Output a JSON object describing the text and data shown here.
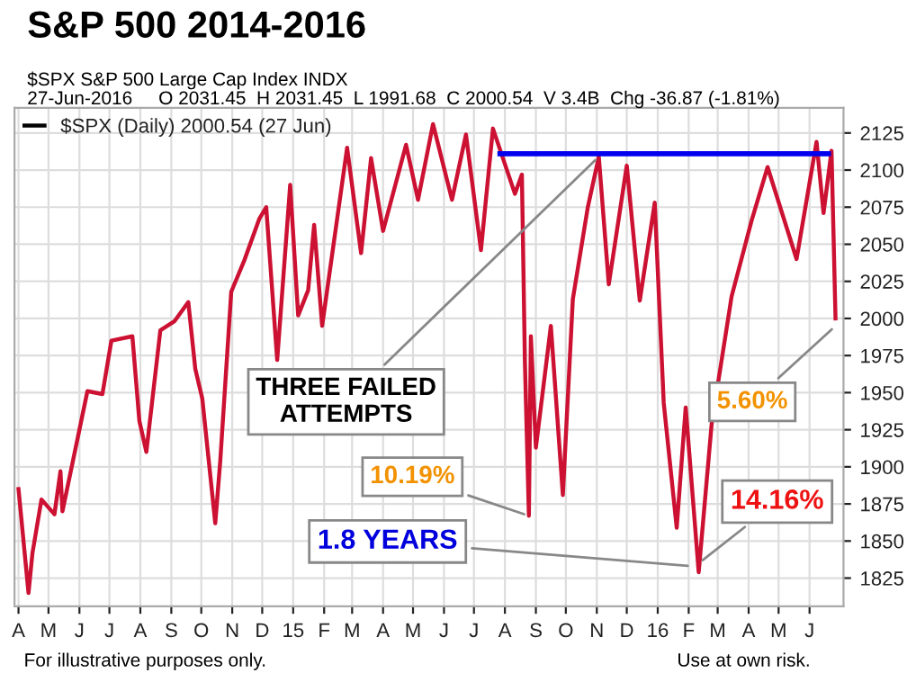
{
  "chart_data": {
    "type": "line",
    "title": "S&P 500 2014-2016",
    "subtitle": "$SPX S&P 500 Large Cap Index INDX\n27-Jun-2016     O 2031.45  H 2031.45  L 1991.68  C 2000.54  V 3.4B  Chg -36.87 (-1.81%)",
    "series": [
      {
        "name": "$SPX (Daily) 2000.54 (27 Jun)",
        "color": "#cc1133",
        "x": [
          "2014-04-01",
          "2014-04-11",
          "2014-04-15",
          "2014-04-24",
          "2014-05-07",
          "2014-05-13",
          "2014-05-15",
          "2014-06-09",
          "2014-06-24",
          "2014-07-03",
          "2014-07-24",
          "2014-07-31",
          "2014-08-07",
          "2014-08-21",
          "2014-09-04",
          "2014-09-18",
          "2014-09-25",
          "2014-10-02",
          "2014-10-15",
          "2014-10-20",
          "2014-10-31",
          "2014-11-13",
          "2014-11-28",
          "2014-12-05",
          "2014-12-16",
          "2014-12-29",
          "2015-01-06",
          "2015-01-16",
          "2015-01-22",
          "2015-01-30",
          "2015-02-24",
          "2015-03-10",
          "2015-03-20",
          "2015-04-01",
          "2015-04-24",
          "2015-05-06",
          "2015-05-21",
          "2015-06-09",
          "2015-06-23",
          "2015-07-08",
          "2015-07-20",
          "2015-08-11",
          "2015-08-18",
          "2015-08-21",
          "2015-08-25",
          "2015-08-27",
          "2015-09-01",
          "2015-09-16",
          "2015-09-28",
          "2015-10-08",
          "2015-10-23",
          "2015-11-03",
          "2015-11-13",
          "2015-12-01",
          "2015-12-14",
          "2015-12-29",
          "2016-01-07",
          "2016-01-20",
          "2016-01-29",
          "2016-02-11",
          "2016-02-24",
          "2016-03-15",
          "2016-04-04",
          "2016-04-20",
          "2016-05-19",
          "2016-06-08",
          "2016-06-15",
          "2016-06-23",
          "2016-06-27"
        ],
        "values": [
          1885,
          1815,
          1842,
          1878,
          1868,
          1897,
          1870,
          1951,
          1949,
          1985,
          1988,
          1931,
          1910,
          1992,
          1998,
          2011,
          1966,
          1946,
          1862,
          1904,
          2018,
          2039,
          2067,
          2075,
          1972,
          2090,
          2002,
          2019,
          2063,
          1995,
          2115,
          2044,
          2108,
          2059,
          2117,
          2080,
          2131,
          2080,
          2124,
          2046,
          2128,
          2084,
          2097,
          1971,
          1867,
          1988,
          1913,
          1995,
          1881,
          2013,
          2075,
          2109,
          2023,
          2103,
          2012,
          2078,
          1943,
          1859,
          1940,
          1829,
          1929,
          2015,
          2066,
          2102,
          2040,
          2119,
          2071,
          2113,
          2000
        ]
      },
      {
        "color": "#0000ee",
        "x": [
          "2015-07-27",
          "2016-06-20"
        ],
        "values": [
          2111,
          2111
        ]
      }
    ],
    "xlim": [
      "2014-03-28",
      "2016-07-05"
    ],
    "xticks": [
      {
        "value": "2014-04-01",
        "label": "A"
      },
      {
        "value": "2014-05-01",
        "label": "M"
      },
      {
        "value": "2014-06-01",
        "label": "J"
      },
      {
        "value": "2014-07-01",
        "label": "J"
      },
      {
        "value": "2014-08-01",
        "label": "A"
      },
      {
        "value": "2014-09-01",
        "label": "S"
      },
      {
        "value": "2014-10-01",
        "label": "O"
      },
      {
        "value": "2014-11-01",
        "label": "N"
      },
      {
        "value": "2014-12-01",
        "label": "D"
      },
      {
        "value": "2015-01-01",
        "label": "15"
      },
      {
        "value": "2015-02-01",
        "label": "F"
      },
      {
        "value": "2015-03-01",
        "label": "M"
      },
      {
        "value": "2015-04-01",
        "label": "A"
      },
      {
        "value": "2015-05-01",
        "label": "M"
      },
      {
        "value": "2015-06-01",
        "label": "J"
      },
      {
        "value": "2015-07-01",
        "label": "J"
      },
      {
        "value": "2015-08-01",
        "label": "A"
      },
      {
        "value": "2015-09-01",
        "label": "S"
      },
      {
        "value": "2015-10-01",
        "label": "O"
      },
      {
        "value": "2015-11-01",
        "label": "N"
      },
      {
        "value": "2015-12-01",
        "label": "D"
      },
      {
        "value": "2016-01-01",
        "label": "16"
      },
      {
        "value": "2016-02-01",
        "label": "F"
      },
      {
        "value": "2016-03-01",
        "label": "M"
      },
      {
        "value": "2016-04-01",
        "label": "A"
      },
      {
        "value": "2016-05-01",
        "label": "M"
      },
      {
        "value": "2016-06-01",
        "label": "J"
      }
    ],
    "ylim": [
      1806,
      2142
    ],
    "yticks": [
      1825,
      1850,
      1875,
      1900,
      1925,
      1950,
      1975,
      2000,
      2025,
      2050,
      2075,
      2100,
      2125
    ],
    "grid": true,
    "legend": "top left",
    "annotations": [
      {
        "text": "THREE FAILED ATTEMPTS",
        "x": "2015-11-03",
        "y": 2109
      },
      {
        "text": "10.19%",
        "x": "2015-08-25",
        "y": 1867
      },
      {
        "text": "5.60%",
        "x": "2016-06-27",
        "y": 1995
      },
      {
        "text": "14.16%",
        "x": "2016-02-11",
        "y": 1835
      },
      {
        "text": "1.8 YEARS",
        "x": "2016-02-05",
        "y": 1833
      },
      "For illustrative purposes only.",
      "Use at own risk."
    ]
  }
}
